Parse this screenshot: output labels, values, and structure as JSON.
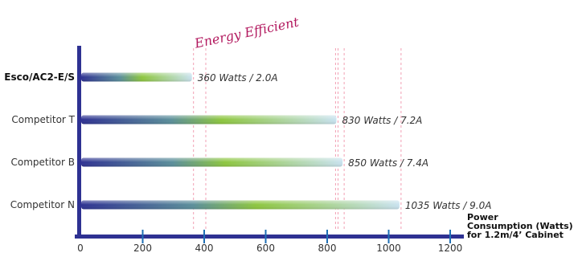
{
  "chart_data": {
    "type": "bar",
    "orientation": "horizontal",
    "categories": [
      "Esco/AC2-E/S",
      "Competitor T",
      "Competitor B",
      "Competitor N"
    ],
    "values": [
      360,
      830,
      850,
      1035
    ],
    "highlight_category": "Esco/AC2-E/S",
    "data_labels": [
      "360 Watts / 2.0A",
      "830 Watts / 7.2A",
      "850 Watts / 7.4A",
      "1035 Watts / 9.0A"
    ],
    "annotation": "Energy Efficient",
    "xlabel": "Power Consumption (Watts) for 1.2m/4’ Cabinet",
    "xlabel_lines": [
      "Power",
      "Consumption (Watts)",
      "for 1.2m/4’ Cabinet"
    ],
    "ylabel": "",
    "xlim": [
      0,
      1200
    ],
    "xticks": [
      0,
      200,
      400,
      600,
      800,
      1000,
      1200
    ],
    "grid": false,
    "legend": "none",
    "colors": {
      "axis": "#2e3192",
      "tick": "#1f6fb5",
      "bar_start": "#2e3192",
      "bar_mid": "#8dc63f",
      "bar_end": "#c9e2ef",
      "reference_line": "#f2a0b4",
      "annotation": "#b2185e"
    }
  }
}
